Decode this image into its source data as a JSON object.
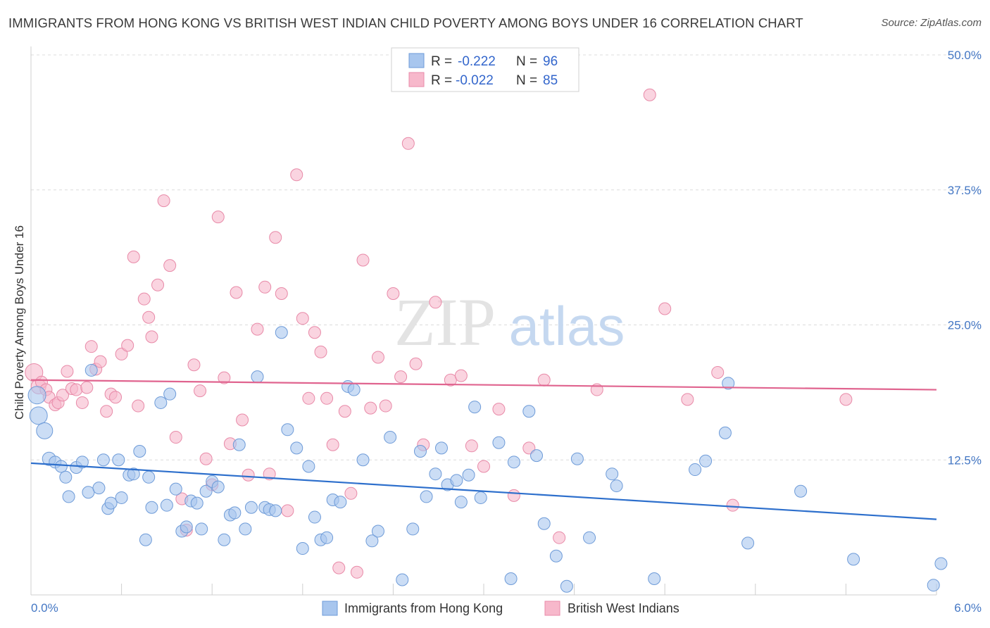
{
  "title": "IMMIGRANTS FROM HONG KONG VS BRITISH WEST INDIAN CHILD POVERTY AMONG BOYS UNDER 16 CORRELATION CHART",
  "source": "Source: ZipAtlas.com",
  "watermark": {
    "zip": "ZIP",
    "atlas": "atlas"
  },
  "colors": {
    "blue_fill": "#a8c6ee",
    "blue_stroke": "#6e9bd8",
    "blue_line": "#2d6fcc",
    "pink_fill": "#f7b8cb",
    "pink_stroke": "#e88aa8",
    "pink_line": "#e0648f",
    "tick_text": "#4477c4",
    "grid": "#dcdcdc"
  },
  "legend": {
    "rows": [
      {
        "r_label": "R =",
        "r_value": "-0.222",
        "n_label": "N =",
        "n_value": "96",
        "series": "blue"
      },
      {
        "r_label": "R =",
        "r_value": "-0.022",
        "n_label": "N =",
        "n_value": "85",
        "series": "pink"
      }
    ]
  },
  "bottom_legend": [
    {
      "label": "Immigrants from Hong Kong",
      "series": "blue"
    },
    {
      "label": "British West Indians",
      "series": "pink"
    }
  ],
  "chart_data": {
    "type": "scatter",
    "title": "IMMIGRANTS FROM HONG KONG VS BRITISH WEST INDIAN CHILD POVERTY AMONG BOYS UNDER 16 CORRELATION CHART",
    "xlabel": "",
    "ylabel": "Child Poverty Among Boys Under 16",
    "xlim": [
      0,
      6
    ],
    "ylim": [
      0,
      50
    ],
    "x_tick_labels": [
      "0.0%",
      "6.0%"
    ],
    "y_ticks": [
      12.5,
      25.0,
      37.5,
      50.0
    ],
    "y_tick_labels": [
      "12.5%",
      "25.0%",
      "37.5%",
      "50.0%"
    ],
    "grid": "horizontal dashed",
    "legend_position": "top-center",
    "series": [
      {
        "name": "Immigrants from Hong Kong",
        "color": "#a8c6ee",
        "trend": {
          "x": [
            0,
            6
          ],
          "y": [
            12.2,
            7.0
          ]
        },
        "points": [
          [
            0.04,
            18.5,
            14
          ],
          [
            0.05,
            16.6,
            14
          ],
          [
            0.09,
            15.2,
            13
          ],
          [
            0.12,
            12.6,
            11
          ],
          [
            0.16,
            12.3,
            10
          ],
          [
            0.2,
            11.9,
            10
          ],
          [
            0.23,
            10.9,
            10
          ],
          [
            0.25,
            9.1,
            10
          ],
          [
            0.3,
            11.8,
            10
          ],
          [
            0.34,
            12.3,
            10
          ],
          [
            0.38,
            9.5,
            10
          ],
          [
            0.4,
            20.8,
            10
          ],
          [
            0.45,
            9.9,
            10
          ],
          [
            0.48,
            12.5,
            10
          ],
          [
            0.51,
            8.0,
            10
          ],
          [
            0.53,
            8.5,
            10
          ],
          [
            0.58,
            12.5,
            10
          ],
          [
            0.6,
            9.0,
            10
          ],
          [
            0.65,
            11.1,
            10
          ],
          [
            0.68,
            11.2,
            10
          ],
          [
            0.72,
            13.3,
            10
          ],
          [
            0.76,
            5.1,
            10
          ],
          [
            0.78,
            10.9,
            10
          ],
          [
            0.8,
            8.1,
            10
          ],
          [
            0.86,
            17.8,
            10
          ],
          [
            0.9,
            8.3,
            10
          ],
          [
            0.92,
            18.6,
            10
          ],
          [
            0.96,
            9.8,
            10
          ],
          [
            1.0,
            5.9,
            10
          ],
          [
            1.03,
            6.3,
            10
          ],
          [
            1.06,
            8.7,
            10
          ],
          [
            1.1,
            8.5,
            10
          ],
          [
            1.13,
            6.1,
            10
          ],
          [
            1.16,
            9.6,
            10
          ],
          [
            1.2,
            10.5,
            10
          ],
          [
            1.24,
            10.0,
            10
          ],
          [
            1.28,
            5.1,
            10
          ],
          [
            1.32,
            7.4,
            10
          ],
          [
            1.35,
            7.6,
            10
          ],
          [
            1.38,
            13.9,
            10
          ],
          [
            1.42,
            6.1,
            10
          ],
          [
            1.46,
            8.1,
            10
          ],
          [
            1.5,
            20.2,
            10
          ],
          [
            1.55,
            8.1,
            10
          ],
          [
            1.58,
            7.9,
            10
          ],
          [
            1.62,
            7.8,
            10
          ],
          [
            1.66,
            24.3,
            10
          ],
          [
            1.7,
            15.3,
            10
          ],
          [
            1.76,
            13.6,
            10
          ],
          [
            1.8,
            4.3,
            10
          ],
          [
            1.84,
            11.9,
            10
          ],
          [
            1.88,
            7.2,
            10
          ],
          [
            1.92,
            5.1,
            10
          ],
          [
            1.96,
            5.3,
            10
          ],
          [
            2.0,
            8.8,
            10
          ],
          [
            2.05,
            8.6,
            10
          ],
          [
            2.1,
            19.3,
            10
          ],
          [
            2.14,
            19.0,
            10
          ],
          [
            2.2,
            12.5,
            10
          ],
          [
            2.26,
            5.0,
            10
          ],
          [
            2.3,
            5.9,
            10
          ],
          [
            2.38,
            14.6,
            10
          ],
          [
            2.46,
            1.4,
            10
          ],
          [
            2.53,
            6.1,
            10
          ],
          [
            2.58,
            13.3,
            10
          ],
          [
            2.62,
            9.1,
            10
          ],
          [
            2.68,
            11.2,
            10
          ],
          [
            2.72,
            13.6,
            10
          ],
          [
            2.76,
            10.2,
            10
          ],
          [
            2.82,
            10.6,
            10
          ],
          [
            2.85,
            8.6,
            10
          ],
          [
            2.9,
            11.1,
            10
          ],
          [
            2.94,
            17.4,
            10
          ],
          [
            2.98,
            9.0,
            10
          ],
          [
            3.1,
            14.1,
            10
          ],
          [
            3.2,
            12.3,
            10
          ],
          [
            3.3,
            17.0,
            10
          ],
          [
            3.35,
            12.9,
            10
          ],
          [
            3.4,
            6.6,
            10
          ],
          [
            3.48,
            3.6,
            10
          ],
          [
            3.55,
            0.8,
            10
          ],
          [
            3.62,
            12.6,
            10
          ],
          [
            3.7,
            5.3,
            10
          ],
          [
            3.85,
            11.2,
            10
          ],
          [
            3.88,
            10.1,
            10
          ],
          [
            4.13,
            1.5,
            10
          ],
          [
            4.4,
            11.6,
            10
          ],
          [
            4.47,
            12.4,
            10
          ],
          [
            4.6,
            15.0,
            10
          ],
          [
            4.62,
            19.6,
            10
          ],
          [
            4.75,
            4.8,
            10
          ],
          [
            5.1,
            9.6,
            10
          ],
          [
            5.45,
            3.3,
            10
          ],
          [
            5.98,
            0.9,
            10
          ],
          [
            6.03,
            2.9,
            10
          ],
          [
            3.18,
            1.5,
            10
          ]
        ]
      },
      {
        "name": "British West Indians",
        "color": "#f7b8cb",
        "trend": {
          "x": [
            0,
            6
          ],
          "y": [
            19.9,
            19.0
          ]
        },
        "points": [
          [
            0.02,
            20.6,
            14
          ],
          [
            0.05,
            19.3,
            12
          ],
          [
            0.07,
            19.7,
            10
          ],
          [
            0.1,
            19.0,
            10
          ],
          [
            0.12,
            18.3,
            10
          ],
          [
            0.16,
            17.6,
            10
          ],
          [
            0.18,
            17.8,
            10
          ],
          [
            0.21,
            18.5,
            10
          ],
          [
            0.24,
            20.7,
            10
          ],
          [
            0.27,
            19.1,
            10
          ],
          [
            0.3,
            19.0,
            10
          ],
          [
            0.34,
            17.8,
            10
          ],
          [
            0.37,
            19.2,
            10
          ],
          [
            0.4,
            23.0,
            10
          ],
          [
            0.43,
            20.9,
            10
          ],
          [
            0.46,
            21.6,
            10
          ],
          [
            0.5,
            17.0,
            10
          ],
          [
            0.53,
            18.6,
            10
          ],
          [
            0.56,
            18.3,
            10
          ],
          [
            0.6,
            22.3,
            10
          ],
          [
            0.64,
            23.1,
            10
          ],
          [
            0.68,
            31.3,
            10
          ],
          [
            0.71,
            17.5,
            10
          ],
          [
            0.75,
            27.4,
            10
          ],
          [
            0.78,
            25.7,
            10
          ],
          [
            0.8,
            23.9,
            10
          ],
          [
            0.84,
            28.7,
            10
          ],
          [
            0.88,
            36.5,
            10
          ],
          [
            0.92,
            30.5,
            10
          ],
          [
            0.96,
            14.6,
            10
          ],
          [
            1.0,
            8.9,
            10
          ],
          [
            1.03,
            6.0,
            10
          ],
          [
            1.08,
            21.3,
            10
          ],
          [
            1.12,
            18.9,
            10
          ],
          [
            1.16,
            12.6,
            10
          ],
          [
            1.2,
            10.2,
            10
          ],
          [
            1.24,
            35.0,
            10
          ],
          [
            1.28,
            20.1,
            10
          ],
          [
            1.32,
            14.0,
            10
          ],
          [
            1.36,
            28.0,
            10
          ],
          [
            1.4,
            16.2,
            10
          ],
          [
            1.44,
            11.1,
            10
          ],
          [
            1.5,
            24.6,
            10
          ],
          [
            1.55,
            28.5,
            10
          ],
          [
            1.58,
            11.2,
            10
          ],
          [
            1.62,
            33.1,
            10
          ],
          [
            1.66,
            27.9,
            10
          ],
          [
            1.7,
            7.8,
            10
          ],
          [
            1.76,
            38.9,
            10
          ],
          [
            1.8,
            25.6,
            10
          ],
          [
            1.84,
            18.2,
            10
          ],
          [
            1.88,
            24.3,
            10
          ],
          [
            1.92,
            22.5,
            10
          ],
          [
            1.96,
            18.2,
            10
          ],
          [
            2.0,
            13.9,
            10
          ],
          [
            2.04,
            2.5,
            10
          ],
          [
            2.08,
            17.0,
            10
          ],
          [
            2.12,
            9.4,
            10
          ],
          [
            2.16,
            2.1,
            10
          ],
          [
            2.2,
            31.0,
            10
          ],
          [
            2.25,
            17.3,
            10
          ],
          [
            2.3,
            22.0,
            10
          ],
          [
            2.35,
            17.5,
            10
          ],
          [
            2.4,
            27.9,
            10
          ],
          [
            2.45,
            20.2,
            10
          ],
          [
            2.5,
            41.8,
            10
          ],
          [
            2.55,
            21.4,
            10
          ],
          [
            2.6,
            13.9,
            10
          ],
          [
            2.68,
            27.1,
            10
          ],
          [
            2.78,
            19.9,
            10
          ],
          [
            2.85,
            20.3,
            10
          ],
          [
            2.92,
            13.8,
            10
          ],
          [
            3.0,
            11.9,
            10
          ],
          [
            3.1,
            17.2,
            10
          ],
          [
            3.2,
            9.2,
            10
          ],
          [
            3.3,
            13.6,
            10
          ],
          [
            3.4,
            19.9,
            10
          ],
          [
            3.5,
            5.3,
            10
          ],
          [
            3.75,
            19.0,
            10
          ],
          [
            4.1,
            46.3,
            10
          ],
          [
            4.2,
            26.5,
            10
          ],
          [
            4.35,
            18.1,
            10
          ],
          [
            4.55,
            20.6,
            10
          ],
          [
            4.65,
            8.3,
            10
          ],
          [
            5.4,
            18.1,
            10
          ]
        ]
      }
    ]
  }
}
